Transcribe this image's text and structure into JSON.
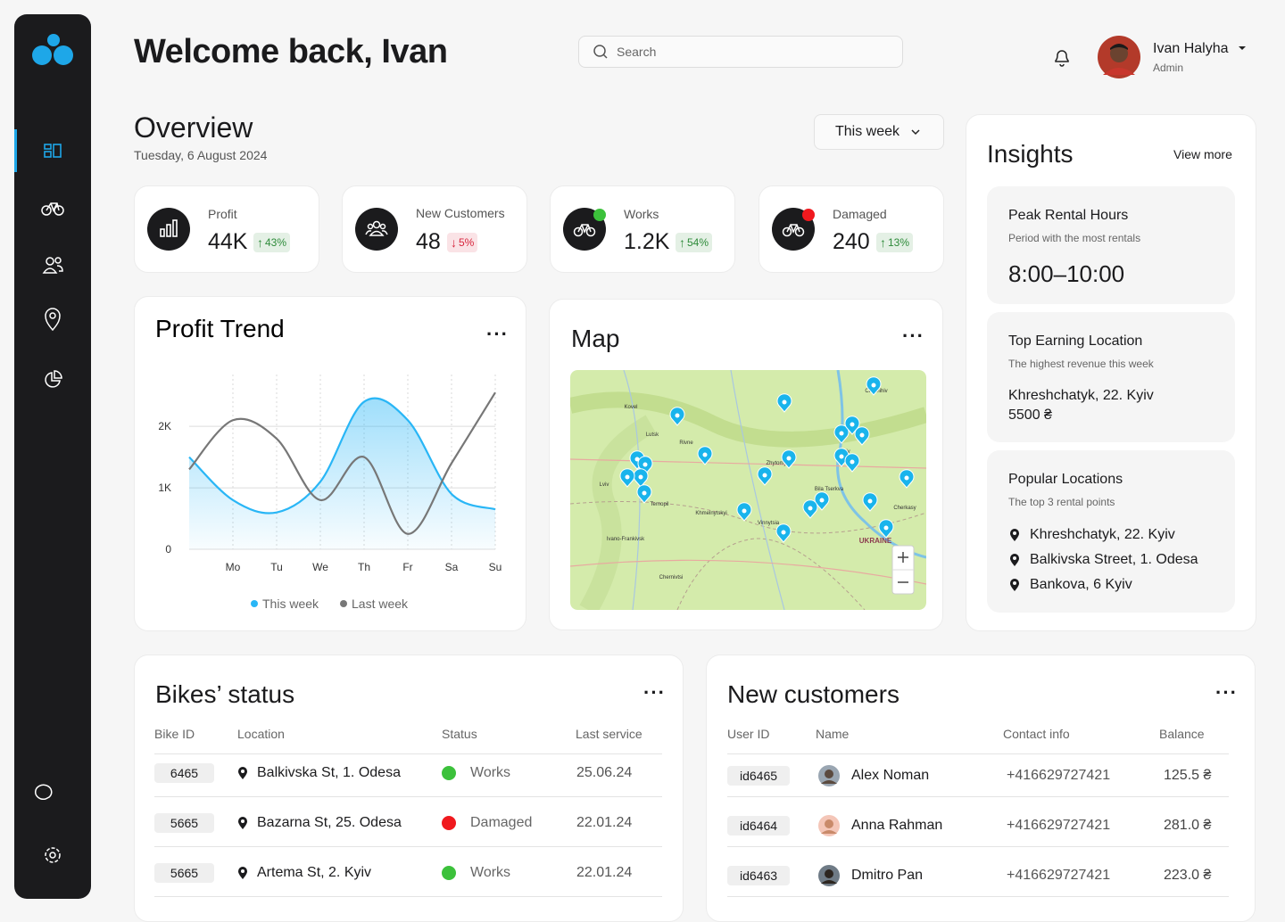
{
  "header": {
    "title": "Welcome back, Ivan",
    "search_placeholder": "Search",
    "user_name": "Ivan Halyha",
    "user_role": "Admin"
  },
  "overview": {
    "title": "Overview",
    "date": "Tuesday, 6 August 2024",
    "period": "This week"
  },
  "stats": [
    {
      "label": "Profit",
      "value": "44K",
      "arrow": "↑",
      "change": "43%",
      "badge_color": "#2e8b3a"
    },
    {
      "label": "New Customers",
      "value": "48",
      "arrow": "↓",
      "change": "5%",
      "badge_color": "#d7263d"
    },
    {
      "label": "Works",
      "value": "1.2K",
      "arrow": "↑",
      "change": "54%",
      "badge_color": "#2e8b3a",
      "dot_color": "#3cc13b"
    },
    {
      "label": "Damaged",
      "value": "240",
      "arrow": "↑",
      "change": "13%",
      "badge_color": "#2e8b3a",
      "dot_color": "#f0191e"
    }
  ],
  "chart_data": {
    "type": "line",
    "title": "Profit Trend",
    "categories": [
      null,
      "Mo",
      "Tu",
      "We",
      "Th",
      "Fr",
      "Sa",
      "Su"
    ],
    "series": [
      {
        "name": "This week",
        "color": "#29b6f6",
        "values": [
          1500,
          800,
          600,
          1100,
          2400,
          2100,
          900,
          650
        ]
      },
      {
        "name": "Last week",
        "color": "#777777",
        "values": [
          1300,
          2100,
          1800,
          800,
          1500,
          250,
          1400,
          2550
        ]
      }
    ],
    "ylim": [
      0,
      2800
    ],
    "yticks": [
      0,
      {
        "value": 1000,
        "label": "1K"
      },
      {
        "value": 2000,
        "label": "2K"
      }
    ],
    "grid": true
  },
  "map": {
    "title": "Map",
    "labels": [
      "Kovel",
      "Lutsk",
      "Rivne",
      "Lviv",
      "Ternopil",
      "Khmelnytskyi",
      "Vinnytsia",
      "Zhytomyr",
      "Kyiv",
      "Bila Tserkva",
      "Cherkasy",
      "Chernihiv",
      "Ivano-Frankivsk",
      "Chernivtsi",
      "UKRAINE"
    ]
  },
  "insights": {
    "title": "Insights",
    "link": "View more",
    "peak": {
      "title": "Peak Rental Hours",
      "subtitle": "Period with the most rentals",
      "value": "8:00–10:00"
    },
    "top": {
      "title": "Top Earning Location",
      "subtitle": "The highest revenue this week",
      "location": "Khreshchatyk, 22. Kyiv",
      "amount": "5500 ₴"
    },
    "popular": {
      "title": "Popular Locations",
      "subtitle": "The top 3 rental points",
      "items": [
        "Khreshchatyk, 22. Kyiv",
        "Balkivska Street, 1. Odesa",
        "Bankova, 6 Kyiv"
      ]
    }
  },
  "bikes": {
    "title": "Bikes’ status",
    "columns": [
      "Bike ID",
      "Location",
      "Status",
      "Last service"
    ],
    "rows": [
      {
        "id": "6465",
        "location": "Balkivska St, 1. Odesa",
        "status": "Works",
        "status_color": "#3cc13b",
        "last_service": "25.06.24"
      },
      {
        "id": "5665",
        "location": "Bazarna St, 25. Odesa",
        "status": "Damaged",
        "status_color": "#f0191e",
        "last_service": "22.01.24"
      },
      {
        "id": "5665",
        "location": "Artema St, 2. Kyiv",
        "status": "Works",
        "status_color": "#3cc13b",
        "last_service": "22.01.24"
      }
    ]
  },
  "customers": {
    "title": "New customers",
    "columns": [
      "User ID",
      "Name",
      "Contact info",
      "Balance"
    ],
    "rows": [
      {
        "id": "id6465",
        "name": "Alex Noman",
        "contact": "+416629727421",
        "balance": "125.5 ₴"
      },
      {
        "id": "id6464",
        "name": "Anna Rahman",
        "contact": "+416629727421",
        "balance": "281.0 ₴"
      },
      {
        "id": "id6463",
        "name": "Dmitro Pan",
        "contact": "+416629727421",
        "balance": "223.0 ₴"
      }
    ]
  }
}
